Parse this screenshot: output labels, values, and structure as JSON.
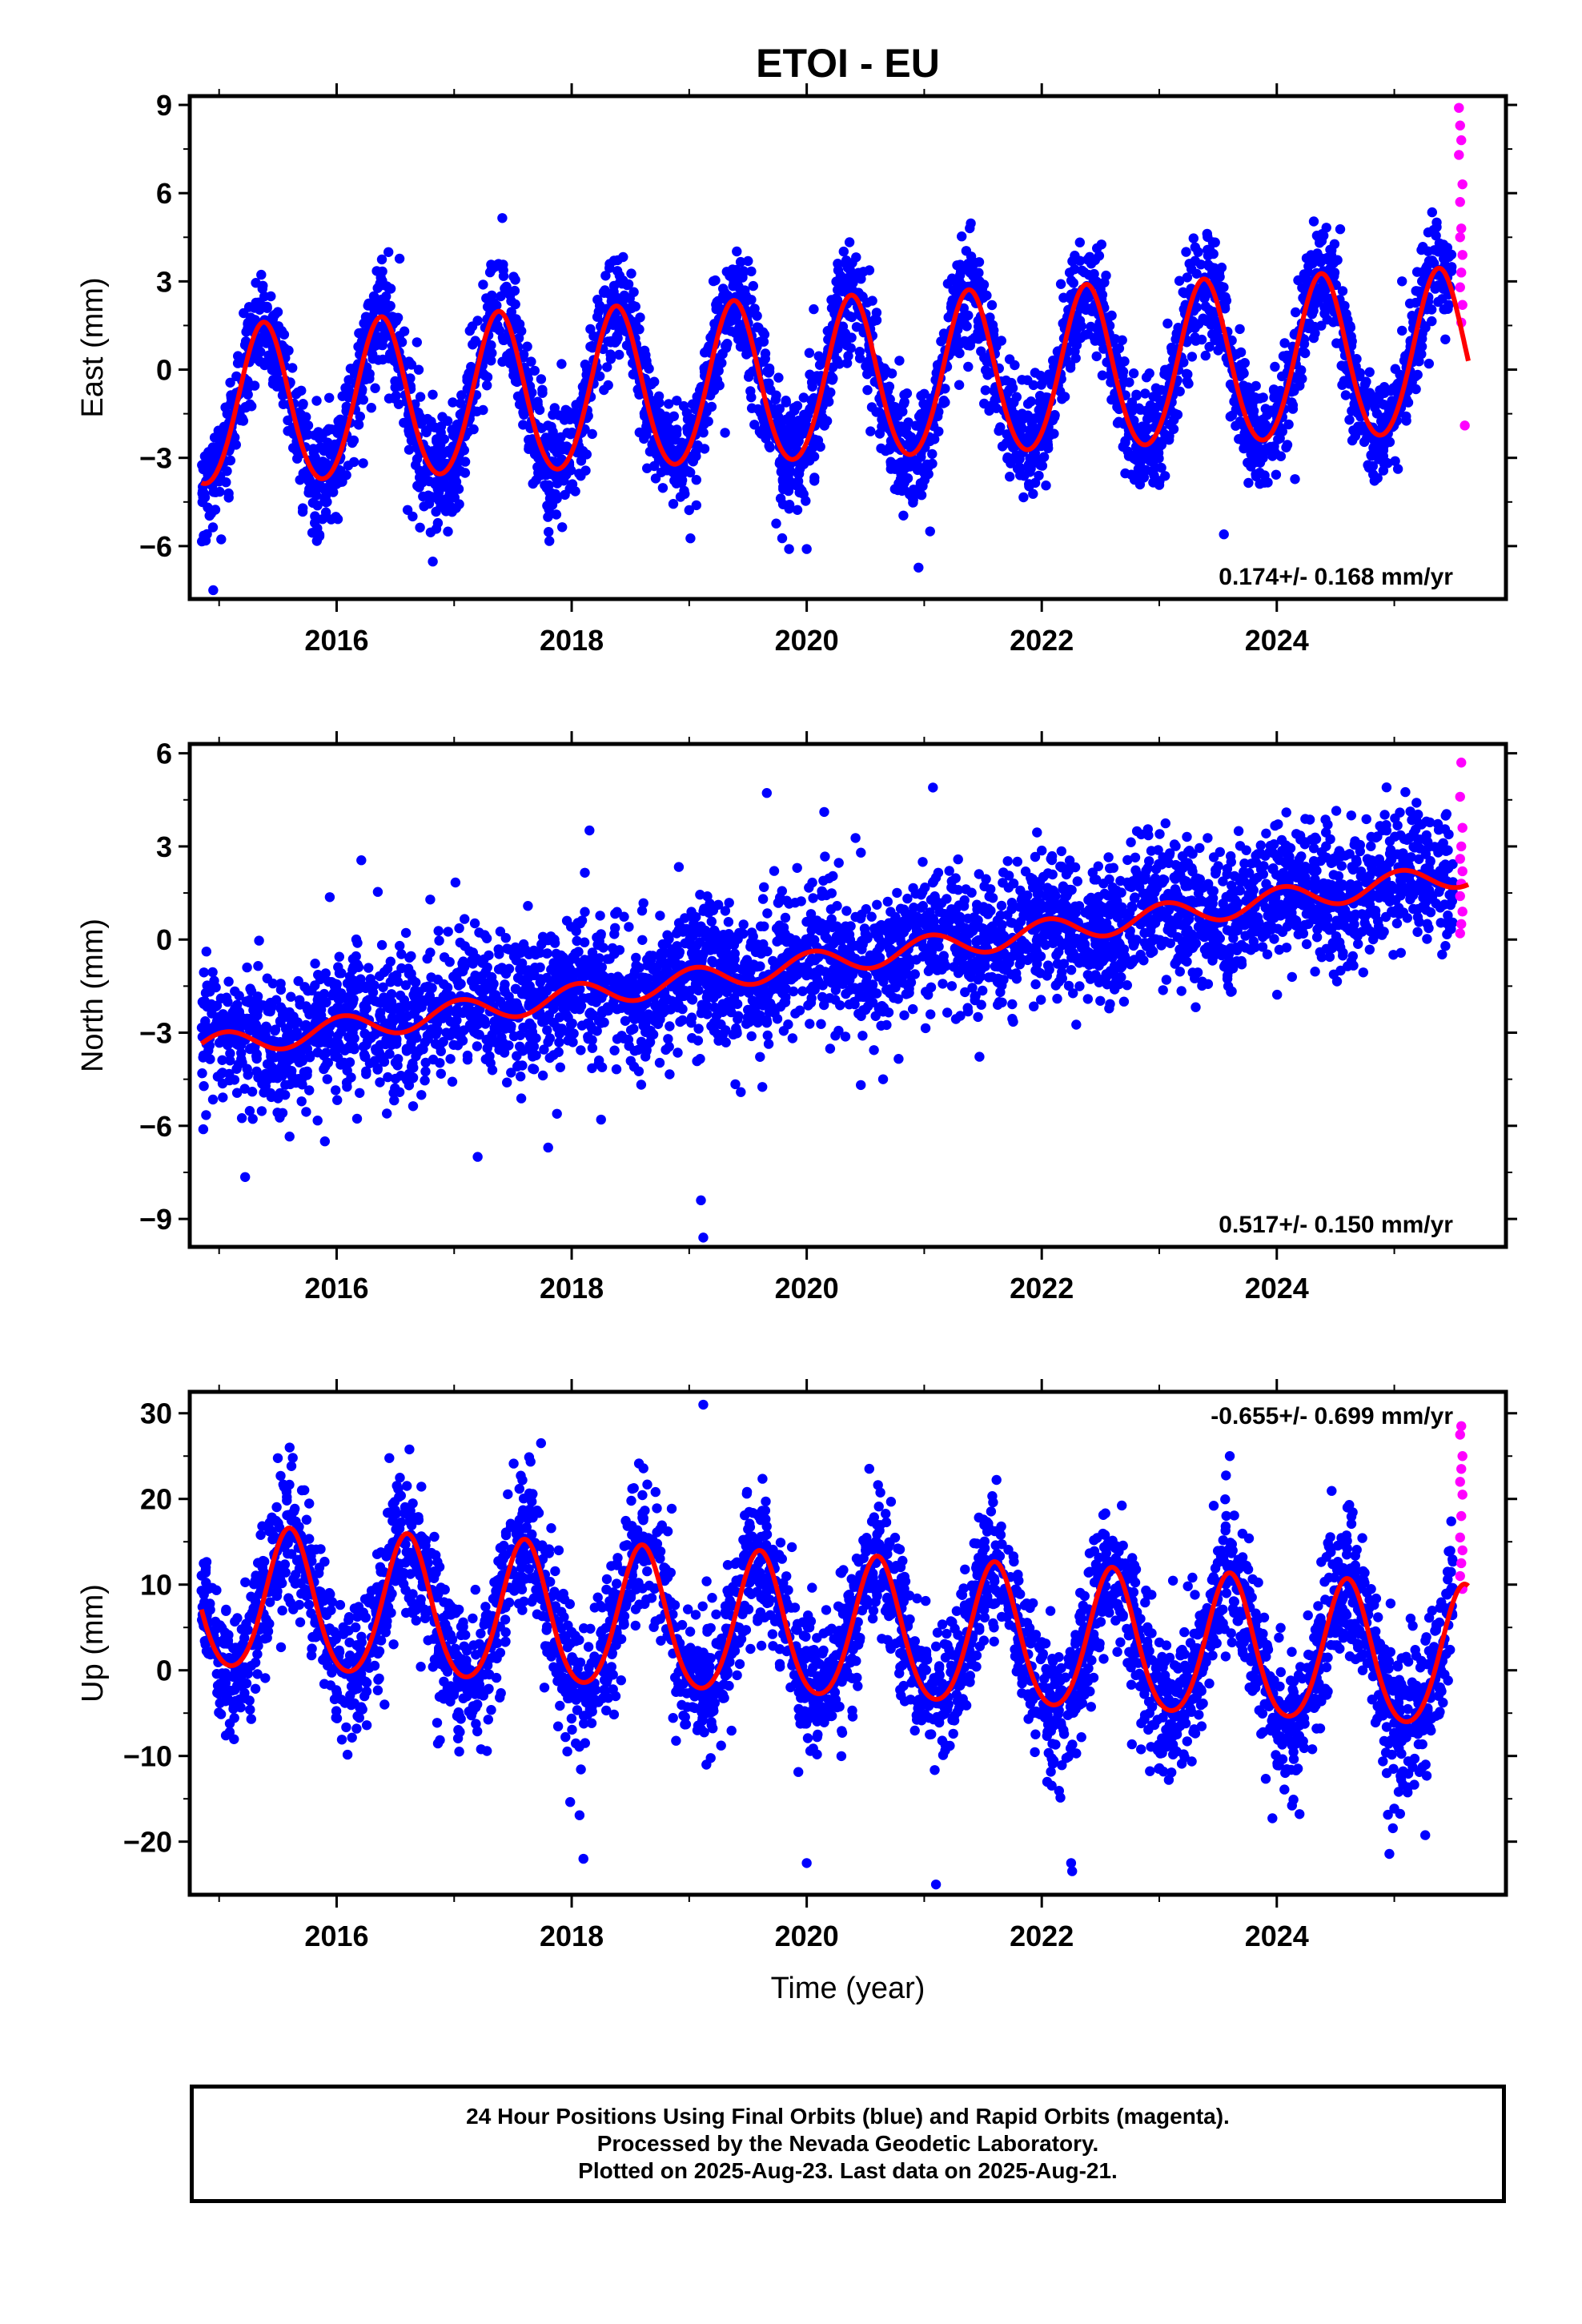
{
  "title": "ETOI - EU",
  "xlabel": "Time (year)",
  "caption": {
    "line1": "24 Hour Positions Using Final Orbits (blue) and Rapid Orbits (magenta).",
    "line2": "Processed by the Nevada Geodetic Laboratory.",
    "line3": "Plotted on 2025-Aug-23. Last data on 2025-Aug-21."
  },
  "colors": {
    "final_orbits": "#0000ff",
    "rapid_orbits": "#ff00ff",
    "model_fit": "#ff0000",
    "axes": "#000000"
  },
  "chart_data": [
    {
      "type": "scatter",
      "component": "East",
      "ylabel": "East (mm)",
      "xlim": [
        2014.75,
        2025.95
      ],
      "ylim": [
        -7.8,
        9.3
      ],
      "yticks": [
        -6,
        -3,
        0,
        3,
        6,
        9
      ],
      "xticks": [
        2016,
        2018,
        2020,
        2022,
        2024
      ],
      "x_minor_ticks": [
        2015,
        2017,
        2019,
        2021,
        2023,
        2025
      ],
      "velocity_label": "0.174+/- 0.168 mm/yr",
      "velocity_label_position": "bottom-right",
      "data_range": [
        2014.85,
        2025.5
      ],
      "rapid_range": [
        2025.5,
        2025.63
      ],
      "model": {
        "offset": -0.45,
        "trend": 0.174,
        "t0": 2020.2,
        "annual_amp_start": 2.7,
        "annual_amp_end": 2.8,
        "annual_peak": 2020.38,
        "semiannual_amp": 0.2
      },
      "series": [
        {
          "name": "Final Orbits",
          "color": "#0000ff",
          "sample_points": [
            [
              2014.9,
              -3.6
            ],
            [
              2015.35,
              1.8
            ],
            [
              2015.85,
              -3.3
            ],
            [
              2016.35,
              2.1
            ],
            [
              2016.9,
              -3.2
            ],
            [
              2017.35,
              2.2
            ],
            [
              2017.9,
              -3.0
            ],
            [
              2018.35,
              2.5
            ],
            [
              2018.9,
              -2.9
            ],
            [
              2019.35,
              2.6
            ],
            [
              2019.85,
              -2.7
            ],
            [
              2020.35,
              2.8
            ],
            [
              2020.85,
              -2.6
            ],
            [
              2021.35,
              2.9
            ],
            [
              2021.85,
              -2.4
            ],
            [
              2022.4,
              3.1
            ],
            [
              2022.9,
              -2.3
            ],
            [
              2023.35,
              3.3
            ],
            [
              2023.9,
              -2.0
            ],
            [
              2024.4,
              3.4
            ],
            [
              2024.9,
              -1.8
            ],
            [
              2025.35,
              3.6
            ]
          ],
          "outliers": [
            [
              2014.95,
              -7.5
            ],
            [
              2020.0,
              -6.1
            ],
            [
              2019.85,
              -6.1
            ],
            [
              2021.05,
              -5.5
            ],
            [
              2023.55,
              -5.6
            ]
          ]
        },
        {
          "name": "Rapid Orbits",
          "color": "#ff00ff",
          "sample_points": [
            [
              2025.55,
              8.9
            ],
            [
              2025.56,
              8.3
            ],
            [
              2025.57,
              7.8
            ],
            [
              2025.55,
              7.3
            ],
            [
              2025.58,
              6.3
            ],
            [
              2025.56,
              5.7
            ],
            [
              2025.57,
              4.8
            ],
            [
              2025.56,
              4.5
            ],
            [
              2025.58,
              3.9
            ],
            [
              2025.57,
              3.3
            ],
            [
              2025.56,
              2.8
            ],
            [
              2025.58,
              2.2
            ],
            [
              2025.57,
              1.6
            ],
            [
              2025.6,
              -1.9
            ]
          ]
        }
      ]
    },
    {
      "type": "scatter",
      "component": "North",
      "ylabel": "North (mm)",
      "xlim": [
        2014.75,
        2025.95
      ],
      "ylim": [
        -9.9,
        6.3
      ],
      "yticks": [
        -9,
        -6,
        -3,
        0,
        3,
        6
      ],
      "xticks": [
        2016,
        2018,
        2020,
        2022,
        2024
      ],
      "x_minor_ticks": [
        2015,
        2017,
        2019,
        2021,
        2023,
        2025
      ],
      "velocity_label": "0.517+/- 0.150 mm/yr",
      "velocity_label_position": "bottom-right",
      "data_range": [
        2014.85,
        2025.5
      ],
      "rapid_range": [
        2025.5,
        2025.63
      ],
      "model": {
        "offset": -0.7,
        "trend": 0.52,
        "t0": 2020.2,
        "annual_amp_start": 0.4,
        "annual_amp_end": 0.4,
        "annual_peak": 2020.05,
        "semiannual_amp": 0.0
      },
      "series": [
        {
          "name": "Final Orbits",
          "color": "#0000ff",
          "sample_points": [
            [
              2014.9,
              -2.6
            ],
            [
              2015.5,
              -2.4
            ],
            [
              2016.5,
              -2.0
            ],
            [
              2017.5,
              -1.5
            ],
            [
              2018.5,
              -1.0
            ],
            [
              2019.5,
              -0.5
            ],
            [
              2020.5,
              0.0
            ],
            [
              2021.5,
              0.5
            ],
            [
              2022.5,
              1.1
            ],
            [
              2023.5,
              1.6
            ],
            [
              2024.5,
              2.2
            ],
            [
              2025.3,
              2.9
            ]
          ],
          "outliers": [
            [
              2019.1,
              -8.4
            ],
            [
              2019.12,
              -9.6
            ],
            [
              2017.2,
              -7.0
            ],
            [
              2017.8,
              -6.7
            ],
            [
              2018.25,
              -5.8
            ],
            [
              2015.9,
              -6.5
            ],
            [
              2020.65,
              -4.5
            ]
          ]
        },
        {
          "name": "Rapid Orbits",
          "color": "#ff00ff",
          "sample_points": [
            [
              2025.57,
              5.7
            ],
            [
              2025.56,
              4.6
            ],
            [
              2025.58,
              3.6
            ],
            [
              2025.57,
              3.0
            ],
            [
              2025.56,
              2.6
            ],
            [
              2025.58,
              2.2
            ],
            [
              2025.57,
              1.8
            ],
            [
              2025.56,
              1.4
            ],
            [
              2025.58,
              0.9
            ],
            [
              2025.57,
              0.5
            ],
            [
              2025.56,
              0.2
            ]
          ]
        }
      ]
    },
    {
      "type": "scatter",
      "component": "Up",
      "ylabel": "Up (mm)",
      "xlim": [
        2014.75,
        2025.95
      ],
      "ylim": [
        -26.2,
        32.5
      ],
      "yticks": [
        -20,
        -10,
        0,
        10,
        20,
        30
      ],
      "xticks": [
        2016,
        2018,
        2020,
        2022,
        2024
      ],
      "x_minor_ticks": [
        2015,
        2017,
        2019,
        2021,
        2023,
        2025
      ],
      "velocity_label": "-0.655+/- 0.699 mm/yr",
      "velocity_label_position": "top-right",
      "data_range": [
        2014.85,
        2025.5
      ],
      "rapid_range": [
        2025.5,
        2025.63
      ],
      "model": {
        "offset": 4.5,
        "trend": -0.655,
        "t0": 2020.2,
        "annual_amp_start": 8.2,
        "annual_amp_end": 8.2,
        "annual_peak": 2020.6,
        "semiannual_amp": 0.9
      },
      "series": [
        {
          "name": "Final Orbits",
          "color": "#0000ff",
          "sample_points": [
            [
              2014.9,
              1.5
            ],
            [
              2015.2,
              -4.0
            ],
            [
              2015.6,
              12.5
            ],
            [
              2016.2,
              -4.5
            ],
            [
              2016.6,
              12.0
            ],
            [
              2017.2,
              -5.0
            ],
            [
              2017.6,
              11.5
            ],
            [
              2018.2,
              -5.5
            ],
            [
              2018.6,
              10.5
            ],
            [
              2019.2,
              -6.5
            ],
            [
              2019.6,
              10.0
            ],
            [
              2020.2,
              -7.0
            ],
            [
              2020.6,
              9.5
            ],
            [
              2021.2,
              -8.0
            ],
            [
              2021.6,
              8.5
            ],
            [
              2022.2,
              -8.5
            ],
            [
              2022.6,
              8.0
            ],
            [
              2023.2,
              -9.0
            ],
            [
              2023.6,
              7.5
            ],
            [
              2024.2,
              -9.5
            ],
            [
              2024.6,
              7.0
            ],
            [
              2025.2,
              -10.5
            ]
          ],
          "outliers": [
            [
              2019.12,
              31.0
            ],
            [
              2021.1,
              -25.0
            ],
            [
              2020.0,
              -22.5
            ],
            [
              2022.25,
              -22.5
            ],
            [
              2018.1,
              -22.0
            ],
            [
              2023.6,
              25.0
            ],
            [
              2015.6,
              26.0
            ]
          ]
        },
        {
          "name": "Rapid Orbits",
          "color": "#ff00ff",
          "sample_points": [
            [
              2025.57,
              28.5
            ],
            [
              2025.56,
              27.5
            ],
            [
              2025.58,
              25.0
            ],
            [
              2025.57,
              23.5
            ],
            [
              2025.56,
              22.0
            ],
            [
              2025.58,
              20.5
            ],
            [
              2025.57,
              18.0
            ],
            [
              2025.56,
              15.5
            ],
            [
              2025.58,
              14.0
            ],
            [
              2025.57,
              12.5
            ],
            [
              2025.56,
              11.0
            ],
            [
              2025.58,
              9.5
            ]
          ]
        }
      ]
    }
  ]
}
